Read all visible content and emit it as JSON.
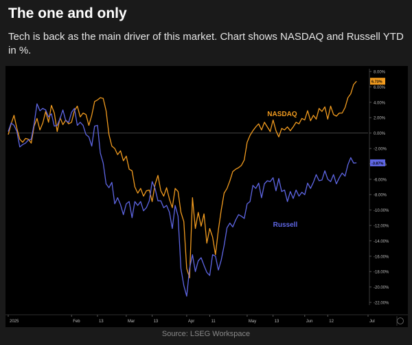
{
  "header": {
    "title": "The one and only",
    "subtitle": "Tech is back as the main driver of this market. Chart shows NASDAQ and Russell YTD in %."
  },
  "footer": {
    "source": "Source: LSEG Workspace"
  },
  "colors": {
    "nasdaq": "#f39c1f",
    "russell": "#5f67e6",
    "background": "#000000",
    "card": "#1a1a1a"
  },
  "chart_data": {
    "type": "line",
    "title": "",
    "xlabel": "",
    "ylabel": "",
    "ylim": [
      -22,
      8
    ],
    "grid": false,
    "y_axis_side": "right",
    "y_ticks": [
      "8.00%",
      "6.00%",
      "4.00%",
      "2.00%",
      "0.00%",
      "-2.00%",
      "-4.00%",
      "-6.00%",
      "-8.00%",
      "-10.00%",
      "-12.00%",
      "-14.00%",
      "-16.00%",
      "-18.00%",
      "-20.00%",
      "-22.00%"
    ],
    "y_tick_values": [
      8,
      6,
      4,
      2,
      0,
      -2,
      -4,
      -6,
      -8,
      -10,
      -12,
      -14,
      -16,
      -18,
      -20,
      -22
    ],
    "x_ticks": [
      "2025",
      "Feb",
      "13",
      "Mar",
      "13",
      "Apr",
      "11",
      "May",
      "13",
      "Jun",
      "12",
      "Jul"
    ],
    "x_tick_positions": [
      0,
      22,
      31,
      41,
      50,
      62,
      70,
      83,
      92,
      103,
      111,
      125
    ],
    "x_range": [
      0,
      125
    ],
    "series": [
      {
        "name": "NASDAQ",
        "last_value_label": "6.73%",
        "x": [
          0,
          1,
          2,
          3,
          4,
          5,
          6,
          7,
          8,
          9,
          10,
          11,
          12,
          13,
          14,
          15,
          16,
          17,
          18,
          19,
          20,
          21,
          22,
          23,
          24,
          25,
          26,
          27,
          28,
          29,
          30,
          31,
          32,
          33,
          34,
          35,
          36,
          37,
          38,
          39,
          40,
          41,
          42,
          43,
          44,
          45,
          46,
          47,
          48,
          49,
          50,
          51,
          52,
          53,
          54,
          55,
          56,
          57,
          58,
          59,
          60,
          61,
          62,
          63,
          64,
          65,
          66,
          67,
          68,
          69,
          70,
          71,
          72,
          73,
          74,
          75,
          76,
          77,
          78,
          79,
          80,
          81,
          82,
          83,
          84,
          85,
          86,
          87,
          88,
          89,
          90,
          91,
          92,
          93,
          94,
          95,
          96,
          97,
          98,
          99,
          100,
          101,
          102,
          103,
          104,
          105,
          106,
          107,
          108,
          109,
          110,
          111,
          112,
          113,
          114,
          115,
          116,
          117,
          118,
          119,
          120,
          121
        ],
        "values": [
          -0.2,
          1.2,
          2.3,
          0.6,
          -0.8,
          -1.2,
          -0.7,
          -0.8,
          -1.3,
          0.9,
          1.9,
          0.4,
          1.3,
          2.8,
          1.4,
          3.6,
          2.6,
          0.2,
          2.0,
          1.1,
          1.7,
          1.2,
          1.4,
          2.9,
          3.5,
          2.1,
          2.6,
          2.4,
          1.0,
          2.3,
          4.1,
          4.3,
          4.6,
          4.5,
          2.9,
          -0.2,
          -1.7,
          -2.0,
          -2.8,
          -2.3,
          -3.6,
          -3.0,
          -4.7,
          -4.9,
          -7.0,
          -7.8,
          -7.2,
          -8.2,
          -7.5,
          -7.4,
          -8.9,
          -6.7,
          -5.5,
          -7.5,
          -8.2,
          -7.1,
          -8.6,
          -9.7,
          -7.2,
          -7.6,
          -10.3,
          -11.5,
          -17.6,
          -18.8,
          -8.4,
          -12.4,
          -10.3,
          -12.1,
          -10.5,
          -14.3,
          -12.4,
          -13.5,
          -15.8,
          -12.6,
          -10.0,
          -7.8,
          -7.2,
          -6.2,
          -5.0,
          -4.7,
          -4.5,
          -4.2,
          -3.5,
          -1.2,
          -0.3,
          0.3,
          0.8,
          1.2,
          0.4,
          1.4,
          0.8,
          0.2,
          1.7,
          0.3,
          -0.5,
          0.6,
          0.4,
          0.8,
          0.3,
          0.8,
          1.4,
          1.2,
          1.9,
          1.7,
          2.9,
          1.6,
          2.3,
          1.8,
          3.2,
          2.8,
          3.4,
          1.8,
          3.5,
          2.4,
          2.2,
          2.6,
          2.6,
          3.3,
          4.6,
          5.1,
          6.3,
          6.73
        ]
      },
      {
        "name": "Russell",
        "last_value_label": "-3.87%",
        "x": [
          0,
          1,
          2,
          3,
          4,
          5,
          6,
          7,
          8,
          9,
          10,
          11,
          12,
          13,
          14,
          15,
          16,
          17,
          18,
          19,
          20,
          21,
          22,
          23,
          24,
          25,
          26,
          27,
          28,
          29,
          30,
          31,
          32,
          33,
          34,
          35,
          36,
          37,
          38,
          39,
          40,
          41,
          42,
          43,
          44,
          45,
          46,
          47,
          48,
          49,
          50,
          51,
          52,
          53,
          54,
          55,
          56,
          57,
          58,
          59,
          60,
          61,
          62,
          63,
          64,
          65,
          66,
          67,
          68,
          69,
          70,
          71,
          72,
          73,
          74,
          75,
          76,
          77,
          78,
          79,
          80,
          81,
          82,
          83,
          84,
          85,
          86,
          87,
          88,
          89,
          90,
          91,
          92,
          93,
          94,
          95,
          96,
          97,
          98,
          99,
          100,
          101,
          102,
          103,
          104,
          105,
          106,
          107,
          108,
          109,
          110,
          111,
          112,
          113,
          114,
          115,
          116,
          117,
          118,
          119,
          120,
          121
        ],
        "values": [
          0.2,
          1.3,
          1.0,
          0.2,
          -1.8,
          -1.5,
          -1.3,
          -0.9,
          -0.8,
          1.2,
          3.8,
          2.9,
          3.2,
          3.0,
          2.1,
          2.5,
          0.9,
          1.0,
          1.9,
          3.0,
          1.6,
          1.4,
          2.7,
          3.2,
          1.0,
          1.4,
          1.0,
          -0.2,
          -0.5,
          -1.7,
          0.9,
          1.0,
          -2.6,
          -3.9,
          -6.6,
          -7.1,
          -6.4,
          -9.2,
          -8.4,
          -9.3,
          -10.6,
          -9.2,
          -8.9,
          -11.0,
          -8.9,
          -9.4,
          -8.9,
          -10.1,
          -9.7,
          -8.8,
          -6.3,
          -7.2,
          -8.8,
          -8.8,
          -9.7,
          -9.4,
          -10.3,
          -12.4,
          -9.4,
          -10.8,
          -17.6,
          -19.8,
          -21.2,
          -17.6,
          -15.8,
          -18.0,
          -16.6,
          -16.2,
          -17.2,
          -18.1,
          -18.5,
          -15.8,
          -16.0,
          -17.8,
          -16.5,
          -14.6,
          -12.3,
          -11.7,
          -12.2,
          -11.3,
          -10.6,
          -10.8,
          -11.1,
          -9.2,
          -8.9,
          -6.8,
          -7.2,
          -6.5,
          -8.4,
          -6.6,
          -6.2,
          -6.3,
          -5.8,
          -7.5,
          -5.9,
          -7.6,
          -7.4,
          -8.9,
          -7.6,
          -8.5,
          -7.4,
          -8.2,
          -7.7,
          -8.0,
          -6.5,
          -7.2,
          -6.4,
          -5.4,
          -6.2,
          -6.1,
          -4.9,
          -6.0,
          -6.3,
          -5.4,
          -6.6,
          -5.8,
          -5.2,
          -5.6,
          -4.1,
          -3.2,
          -3.9,
          -3.87
        ]
      }
    ],
    "annotations": [
      {
        "text": "NASDAQ",
        "x": 90,
        "y": 2.2,
        "series": "NASDAQ"
      },
      {
        "text": "Russell",
        "x": 92,
        "y": -12.2,
        "series": "Russell"
      }
    ]
  }
}
